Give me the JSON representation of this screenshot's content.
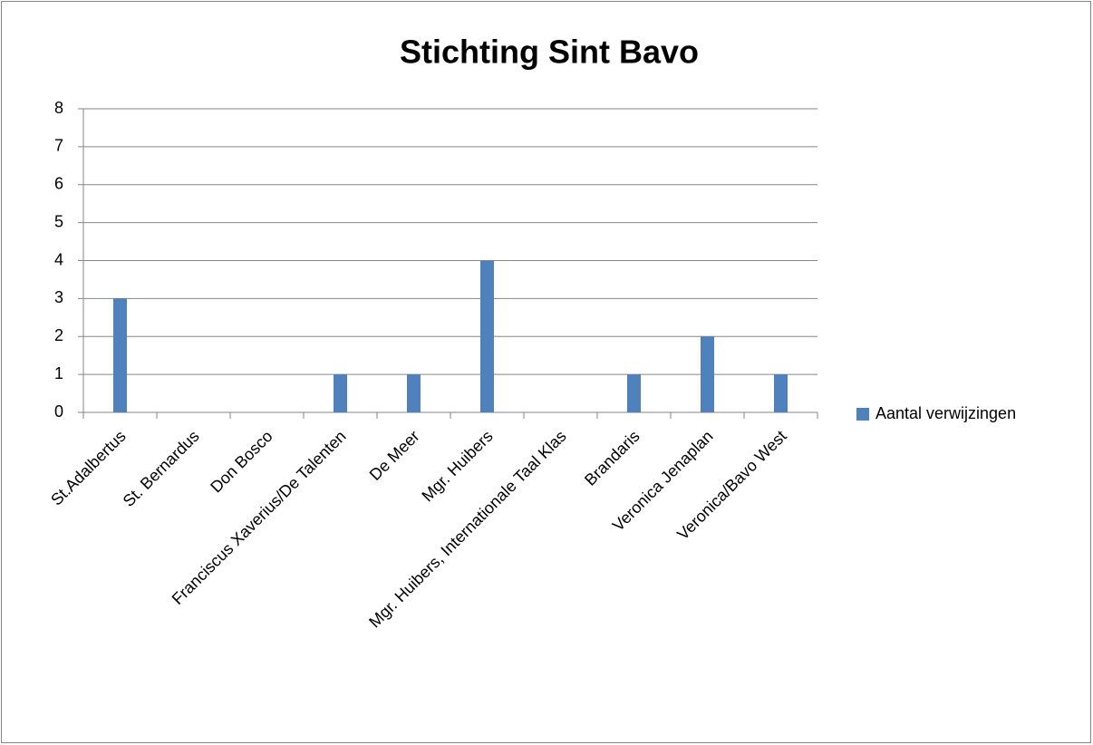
{
  "chart_data": {
    "type": "bar",
    "title": "Stichting Sint Bavo",
    "categories": [
      "St.Adalbertus",
      "St. Bernardus",
      "Don Bosco",
      "Franciscus Xaverius/De Talenten",
      "De Meer",
      "Mgr. Huibers",
      "Mgr. Huibers, Internationale Taal Klas",
      "Brandaris",
      "Veronica Jenaplan",
      "Veronica/Bavo West"
    ],
    "series": [
      {
        "name": "Aantal verwijzingen",
        "color": "#4f81bd",
        "values": [
          3,
          0,
          0,
          1,
          1,
          4,
          0,
          1,
          2,
          1
        ]
      }
    ],
    "ylim": [
      0,
      8
    ],
    "yticks": [
      0,
      1,
      2,
      3,
      4,
      5,
      6,
      7,
      8
    ],
    "grid": true,
    "legend": "right"
  }
}
